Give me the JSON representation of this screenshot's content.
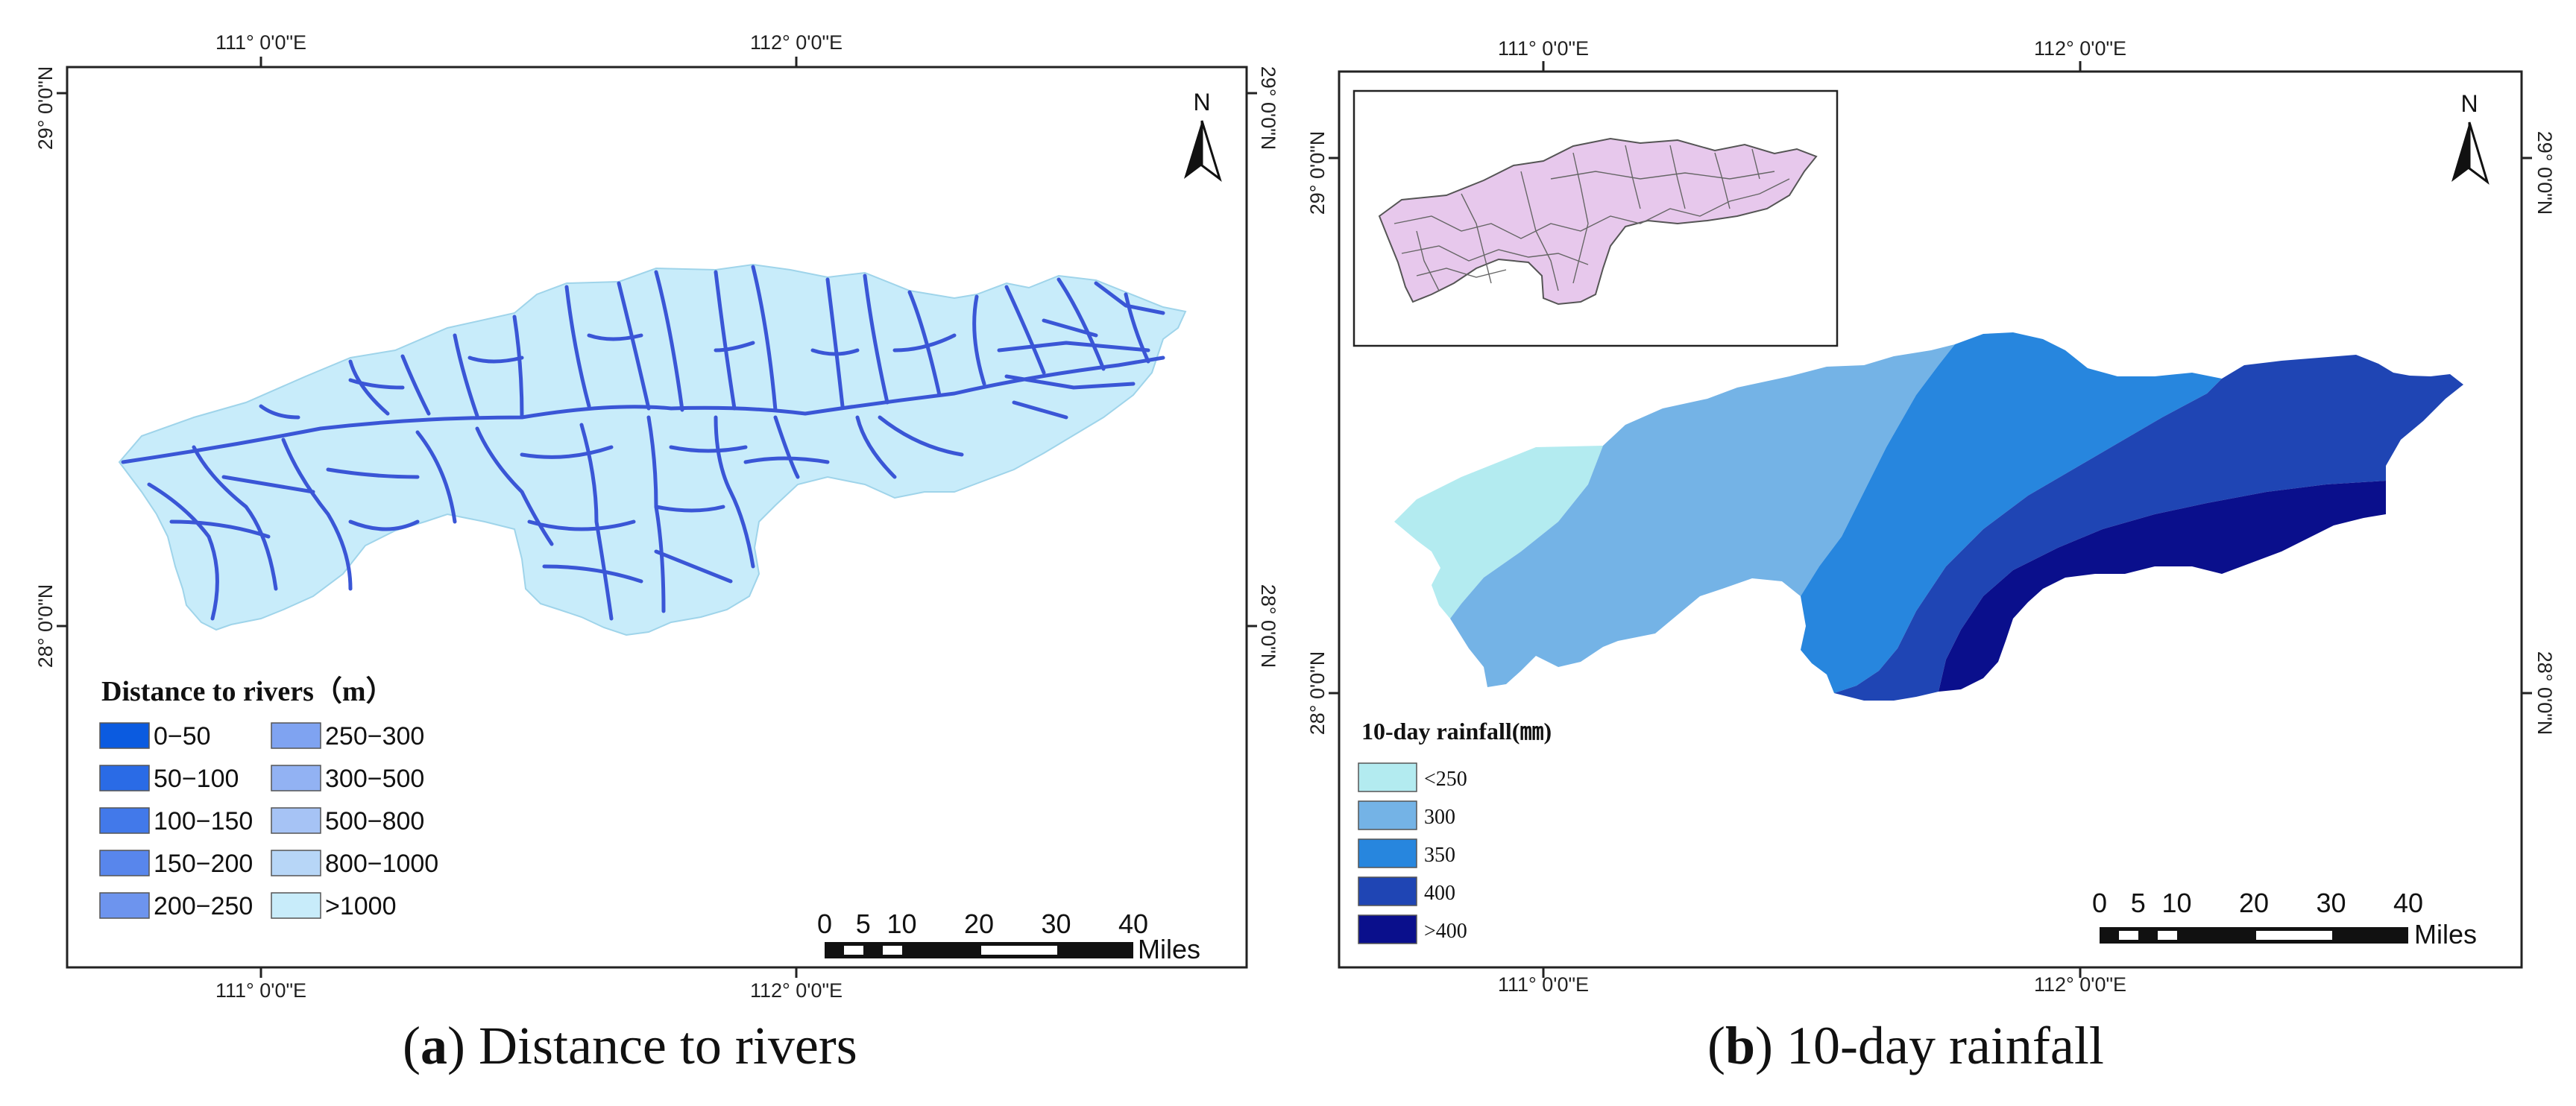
{
  "panels": [
    {
      "id": "a",
      "caption_letter": "a",
      "caption_text": "Distance to rivers",
      "lon_labels": [
        "111° 0'0\"E",
        "112° 0'0\"E"
      ],
      "lat_labels": [
        "29° 0'0\"N",
        "28° 0'0\"N"
      ],
      "north_label": "N",
      "legend_title": "Distance to rivers（m）",
      "legend_items": [
        {
          "label": "0−50",
          "color": "#0b5be0"
        },
        {
          "label": "50−100",
          "color": "#2a6be6"
        },
        {
          "label": "100−150",
          "color": "#4279ea"
        },
        {
          "label": "150−200",
          "color": "#5886ec"
        },
        {
          "label": "200−250",
          "color": "#6d94ee"
        },
        {
          "label": "250−300",
          "color": "#7fa3f1"
        },
        {
          "label": "300−500",
          "color": "#92b2f3"
        },
        {
          "label": "500−800",
          "color": "#a6c3f5"
        },
        {
          "label": "800−1000",
          "color": "#b7d6f7"
        },
        {
          "label": ">1000",
          "color": "#c8ecfa"
        }
      ],
      "scale_labels": [
        "0",
        "5",
        "10",
        "20",
        "30",
        "40"
      ],
      "scale_unit": "Miles"
    },
    {
      "id": "b",
      "caption_letter": "b",
      "caption_text": "10-day rainfall",
      "lon_labels": [
        "111° 0'0\"E",
        "112° 0'0\"E"
      ],
      "lat_labels": [
        "29° 0'0\"N",
        "28° 0'0\"N"
      ],
      "north_label": "N",
      "legend_title": "10-day rainfall(㎜)",
      "legend_items": [
        {
          "label": "<250",
          "color": "#b3ebf0"
        },
        {
          "label": "300",
          "color": "#74b3e6"
        },
        {
          "label": "350",
          "color": "#2786de"
        },
        {
          "label": "400",
          "color": "#1f45b4"
        },
        {
          "label": ">400",
          "color": "#0a0f8c"
        }
      ],
      "scale_labels": [
        "0",
        "5",
        "10",
        "20",
        "30",
        "40"
      ],
      "scale_unit": "Miles"
    }
  ],
  "colors": {
    "river": "#3a56d6",
    "basin_fill": "#c8ecfa",
    "inset_fill": "#e7c8ec",
    "inset_stroke": "#555555"
  }
}
